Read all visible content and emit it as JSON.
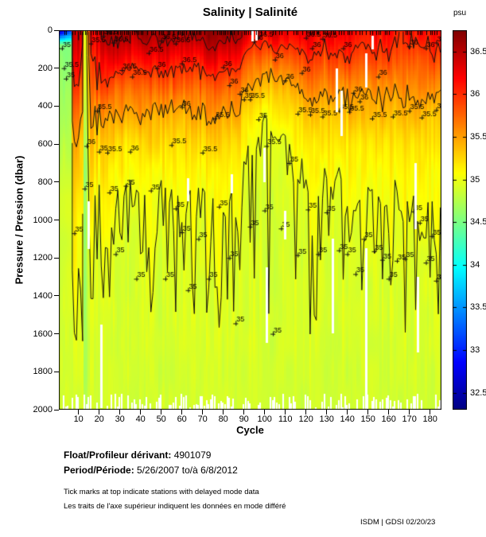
{
  "title": "Salinity | Salinité",
  "colorbar": {
    "unit": "psu",
    "min": 32.3,
    "max": 36.75,
    "tick_labels": [
      "36.5",
      "36",
      "35.5",
      "35",
      "34.5",
      "34",
      "33.5",
      "33",
      "32.5"
    ],
    "tick_values": [
      36.5,
      36,
      35.5,
      35,
      34.5,
      34,
      33.5,
      33,
      32.5
    ]
  },
  "axes": {
    "x": {
      "label": "Cycle",
      "ticks": [
        10,
        20,
        30,
        40,
        50,
        60,
        70,
        80,
        90,
        100,
        110,
        120,
        130,
        140,
        150,
        160,
        170,
        180
      ],
      "min": 0.5,
      "max": 185.5
    },
    "y": {
      "label": "Pressure / Pression (dbar)",
      "ticks": [
        0,
        200,
        400,
        600,
        800,
        1000,
        1200,
        1400,
        1600,
        1800,
        2000
      ],
      "min": 0,
      "max": 2000
    }
  },
  "chart_data": {
    "type": "heatmap",
    "title": "Salinity | Salinité",
    "xlabel": "Cycle",
    "ylabel": "Pressure / Pression (dbar)",
    "x_range": [
      1,
      185
    ],
    "y_range": [
      0,
      2000
    ],
    "unit": "psu",
    "colormap": "jet",
    "value_range": [
      32.3,
      36.75
    ],
    "grid": false,
    "legend_position": "right-colorbar",
    "contour_levels": [
      35,
      35.5,
      36,
      36.5
    ],
    "deep_salinity": 34.88,
    "fresh_surface_cycles": [
      1,
      6
    ],
    "surface_salinity_keypoints": [
      [
        1,
        32.6
      ],
      [
        6,
        32.9
      ],
      [
        7,
        36.2
      ],
      [
        10,
        36.5
      ],
      [
        13,
        36.0
      ],
      [
        16,
        35.9
      ],
      [
        19,
        36.45
      ],
      [
        24,
        36.65
      ],
      [
        30,
        36.7
      ],
      [
        36,
        36.55
      ],
      [
        42,
        36.65
      ],
      [
        48,
        36.6
      ],
      [
        55,
        36.65
      ],
      [
        62,
        36.55
      ],
      [
        68,
        36.65
      ],
      [
        75,
        36.7
      ],
      [
        82,
        36.6
      ],
      [
        88,
        36.65
      ],
      [
        93,
        36.3
      ],
      [
        98,
        36.25
      ],
      [
        104,
        36.35
      ],
      [
        110,
        36.3
      ],
      [
        116,
        36.25
      ],
      [
        122,
        36.3
      ],
      [
        128,
        36.2
      ],
      [
        134,
        36.25
      ],
      [
        140,
        36.3
      ],
      [
        146,
        36.2
      ],
      [
        152,
        36.15
      ],
      [
        158,
        36.2
      ],
      [
        164,
        36.1
      ],
      [
        170,
        36.15
      ],
      [
        176,
        36.1
      ],
      [
        182,
        36.15
      ],
      [
        185,
        36.1
      ]
    ],
    "decay_scale_keypoints": [
      [
        1,
        300
      ],
      [
        7,
        520
      ],
      [
        19,
        500
      ],
      [
        25,
        430
      ],
      [
        40,
        425
      ],
      [
        60,
        420
      ],
      [
        80,
        410
      ],
      [
        88,
        380
      ],
      [
        94,
        300
      ],
      [
        100,
        265
      ],
      [
        106,
        280
      ],
      [
        112,
        330
      ],
      [
        120,
        400
      ],
      [
        130,
        440
      ],
      [
        140,
        450
      ],
      [
        150,
        460
      ],
      [
        160,
        470
      ],
      [
        170,
        480
      ],
      [
        185,
        480
      ]
    ],
    "contour_labels": {
      "35": [
        [
          2,
          95
        ],
        [
          4,
          255
        ],
        [
          8,
          1070
        ],
        [
          13,
          835
        ],
        [
          20,
          640
        ],
        [
          25,
          855
        ],
        [
          28,
          1180
        ],
        [
          33,
          820
        ],
        [
          38,
          1310
        ],
        [
          45,
          845
        ],
        [
          52,
          1310
        ],
        [
          57,
          940
        ],
        [
          60,
          1065
        ],
        [
          63,
          1370
        ],
        [
          68,
          1100
        ],
        [
          73,
          1310
        ],
        [
          78,
          930
        ],
        [
          83,
          1200
        ],
        [
          86,
          1545
        ],
        [
          90,
          365
        ],
        [
          93,
          1035
        ],
        [
          97,
          470
        ],
        [
          100,
          950
        ],
        [
          104,
          1600
        ],
        [
          108,
          1045
        ],
        [
          112,
          700
        ],
        [
          116,
          1185
        ],
        [
          121,
          945
        ],
        [
          126,
          1180
        ],
        [
          130,
          960
        ],
        [
          136,
          1160
        ],
        [
          140,
          1180
        ],
        [
          144,
          1285
        ],
        [
          148,
          1100
        ],
        [
          153,
          1165
        ],
        [
          157,
          1210
        ],
        [
          160,
          1310
        ],
        [
          164,
          1215
        ],
        [
          168,
          1205
        ],
        [
          172,
          955
        ],
        [
          175,
          1015
        ],
        [
          178,
          1225
        ],
        [
          181,
          1085
        ],
        [
          183,
          1320
        ]
      ],
      "35.5": [
        [
          3,
          200
        ],
        [
          16,
          70
        ],
        [
          19,
          425
        ],
        [
          24,
          645
        ],
        [
          55,
          605
        ],
        [
          70,
          645
        ],
        [
          76,
          465
        ],
        [
          93,
          365
        ],
        [
          101,
          610
        ],
        [
          116,
          440
        ],
        [
          122,
          445
        ],
        [
          128,
          455
        ],
        [
          136,
          425
        ],
        [
          141,
          430
        ],
        [
          152,
          465
        ],
        [
          162,
          455
        ],
        [
          170,
          425
        ],
        [
          176,
          460
        ],
        [
          183,
          420
        ]
      ],
      "36": [
        [
          14,
          610
        ],
        [
          35,
          640
        ],
        [
          48,
          200
        ],
        [
          60,
          405
        ],
        [
          80,
          195
        ],
        [
          83,
          290
        ],
        [
          88,
          335
        ],
        [
          95,
          60
        ],
        [
          105,
          155
        ],
        [
          110,
          265
        ],
        [
          118,
          225
        ],
        [
          123,
          95
        ],
        [
          138,
          95
        ],
        [
          143,
          330
        ],
        [
          146,
          375
        ],
        [
          155,
          245
        ],
        [
          170,
          85
        ],
        [
          178,
          95
        ],
        [
          183,
          65
        ]
      ],
      "36.5": [
        [
          22,
          30
        ],
        [
          27,
          65
        ],
        [
          31,
          210
        ],
        [
          36,
          245
        ],
        [
          44,
          120
        ],
        [
          50,
          55
        ],
        [
          57,
          70
        ],
        [
          60,
          175
        ],
        [
          97,
          40
        ],
        [
          120,
          40
        ],
        [
          128,
          45
        ]
      ]
    },
    "missing_data_stripes": [
      [
        15,
        900,
        1150
      ],
      [
        21,
        1550,
        1990
      ],
      [
        63,
        780,
        900
      ],
      [
        84,
        760,
        860
      ],
      [
        94,
        0,
        60
      ],
      [
        96,
        0,
        55
      ],
      [
        100,
        620,
        800
      ],
      [
        101,
        1250,
        1650
      ],
      [
        110,
        950,
        1100
      ],
      [
        133,
        1100,
        1600
      ],
      [
        135,
        200,
        430
      ],
      [
        137,
        320,
        560
      ],
      [
        149,
        120,
        300
      ],
      [
        149,
        1150,
        2000
      ],
      [
        152,
        30,
        100
      ],
      [
        173,
        700,
        1050
      ],
      [
        174,
        1300,
        1700
      ]
    ],
    "top_axis_note": "tick marks on top axis mark delayed-mode stations"
  },
  "footer": {
    "float_label": "Float/Profileur dérivant:",
    "float_value": "4901079",
    "period_label": "Period/Période:",
    "period_value": "5/26/2007  to/à  6/8/2012",
    "note_en": "Tick marks at top indicate stations with delayed mode data",
    "note_fr": "Les traits de l'axe supérieur indiquent les données en mode différé",
    "credit": "ISDM | GDSI  02/20/23"
  }
}
